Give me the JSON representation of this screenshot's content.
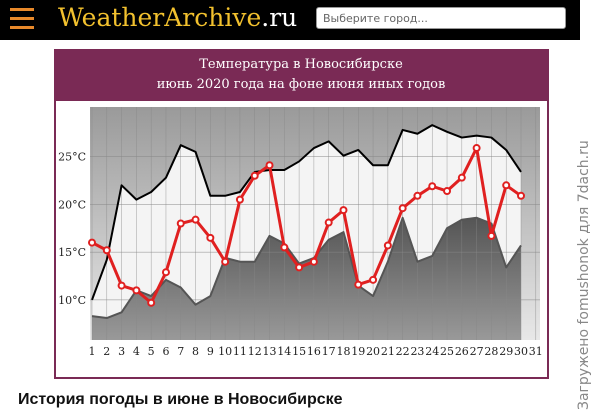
{
  "header": {
    "logo_main": "WeatherArchive",
    "logo_tld": ".ru",
    "search_placeholder": "Выберите город..."
  },
  "heading": "История погоды в июне в Новосибирске",
  "watermark": "Загружено fomushonok для 7dach.ru",
  "chart_data": {
    "type": "line",
    "title": "Температура в Новосибирске",
    "subtitle": "июнь 2020 года на фоне июня иных годов",
    "categories": [
      "1",
      "2",
      "3",
      "4",
      "5",
      "6",
      "7",
      "8",
      "9",
      "10",
      "11",
      "12",
      "13",
      "14",
      "15",
      "16",
      "17",
      "18",
      "19",
      "20",
      "21",
      "22",
      "23",
      "24",
      "25",
      "26",
      "27",
      "28",
      "29",
      "30",
      "31"
    ],
    "ylim": [
      5.8,
      30.2
    ],
    "yticks": [
      {
        "value": 10,
        "label": "10°C"
      },
      {
        "value": 15,
        "label": "15°C"
      },
      {
        "value": 20,
        "label": "20°C"
      },
      {
        "value": 25,
        "label": "25°C"
      }
    ],
    "grid": true,
    "series": [
      {
        "color": "#000000",
        "values": [
          10.0,
          14.2,
          22.0,
          20.5,
          21.3,
          22.8,
          26.2,
          25.5,
          20.9,
          20.9,
          21.3,
          23.4,
          23.6,
          23.6,
          24.5,
          25.9,
          26.6,
          25.1,
          25.7,
          24.1,
          24.1,
          27.8,
          27.4,
          28.3,
          27.6,
          27.0,
          27.2,
          27.0,
          25.7,
          23.4,
          null
        ]
      },
      {
        "color": "#555555",
        "values": [
          8.3,
          8.1,
          8.7,
          11.0,
          10.4,
          12.1,
          11.3,
          9.5,
          10.4,
          14.4,
          14.0,
          14.0,
          16.7,
          15.9,
          13.8,
          14.4,
          16.3,
          17.1,
          11.5,
          10.4,
          14.0,
          18.6,
          14.0,
          14.6,
          17.5,
          18.4,
          18.6,
          18.0,
          13.4,
          15.7,
          null
        ]
      },
      {
        "color": "#e02020",
        "values": [
          16.0,
          15.2,
          11.5,
          11.0,
          9.7,
          12.9,
          18.0,
          18.4,
          16.5,
          14.0,
          20.5,
          23.0,
          24.1,
          15.5,
          13.4,
          14.0,
          18.1,
          19.4,
          11.6,
          12.1,
          15.7,
          19.6,
          20.9,
          21.9,
          21.4,
          22.8,
          25.9,
          16.7,
          22.0,
          20.9,
          null
        ]
      }
    ]
  }
}
